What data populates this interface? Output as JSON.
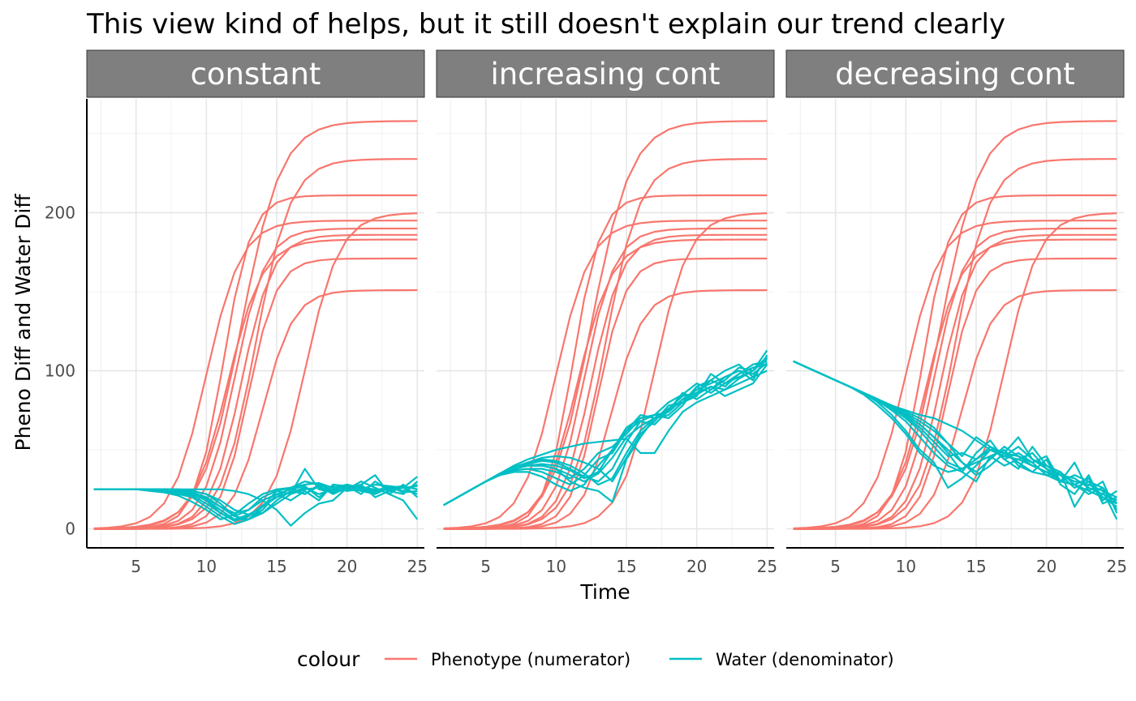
{
  "chart_data": {
    "type": "line",
    "title": "This view kind of helps, but it still doesn't explain our trend clearly",
    "xlabel": "Time",
    "ylabel": "Pheno Diff and Water Diff",
    "xlim": [
      1.5,
      25.5
    ],
    "ylim": [
      -12,
      272
    ],
    "x_ticks": [
      5,
      10,
      15,
      20,
      25
    ],
    "y_ticks": [
      0,
      100,
      200
    ],
    "grid": true,
    "legend_position": "bottom",
    "legend": {
      "title": "colour",
      "entries": [
        {
          "label": "Phenotype (numerator)",
          "color": "#F8766D"
        },
        {
          "label": "Water (denominator)",
          "color": "#00BFC4"
        }
      ]
    },
    "x": [
      2,
      3,
      4,
      5,
      6,
      7,
      8,
      9,
      10,
      11,
      12,
      13,
      14,
      15,
      16,
      17,
      18,
      19,
      20,
      21,
      22,
      23,
      24,
      25
    ],
    "phenotype_params": [
      {
        "K": 258,
        "m": 12.5,
        "s": 0.7
      },
      {
        "K": 234,
        "m": 13.5,
        "s": 0.8
      },
      {
        "K": 211,
        "m": 11.2,
        "s": 1.0
      },
      {
        "K": 200,
        "m": 17.0,
        "s": 0.8
      },
      {
        "K": 195,
        "m": 10.0,
        "s": 0.8
      },
      {
        "K": 190,
        "m": 12.0,
        "s": 0.9
      },
      {
        "K": 186,
        "m": 12.5,
        "s": 0.9
      },
      {
        "K": 183,
        "m": 11.5,
        "s": 0.8
      },
      {
        "K": 171,
        "m": 13.0,
        "s": 1.0
      },
      {
        "K": 151,
        "m": 14.0,
        "s": 0.9
      }
    ],
    "facets": [
      {
        "strip": "constant",
        "series": [
          {
            "name": "Phenotype (numerator)",
            "group": "phenotype"
          },
          {
            "name": "Water (denominator)",
            "group": "water",
            "values": [
              [
                25,
                25,
                25,
                25,
                25,
                25,
                24,
                23,
                18,
                10,
                6,
                9,
                14,
                20,
                23,
                26,
                22,
                25,
                27,
                24,
                22,
                26,
                27,
                25
              ],
              [
                25,
                25,
                25,
                25,
                25,
                24,
                22,
                20,
                14,
                8,
                3,
                6,
                12,
                22,
                25,
                27,
                20,
                27,
                24,
                28,
                20,
                24,
                22,
                30
              ],
              [
                25,
                25,
                25,
                25,
                25,
                25,
                25,
                24,
                22,
                16,
                8,
                12,
                20,
                24,
                22,
                38,
                25,
                23,
                25,
                30,
                26,
                22,
                28,
                20
              ],
              [
                25,
                25,
                25,
                25,
                24,
                23,
                21,
                17,
                12,
                6,
                9,
                16,
                22,
                25,
                26,
                22,
                27,
                22,
                26,
                24,
                23,
                26,
                24,
                28
              ],
              [
                25,
                25,
                25,
                25,
                25,
                25,
                24,
                22,
                18,
                12,
                6,
                6,
                14,
                24,
                26,
                28,
                29,
                26,
                28,
                25,
                24,
                27,
                26,
                22
              ],
              [
                25,
                25,
                25,
                25,
                25,
                25,
                24,
                23,
                20,
                14,
                10,
                12,
                18,
                22,
                18,
                24,
                18,
                28,
                27,
                22,
                30,
                24,
                26,
                33
              ],
              [
                25,
                25,
                25,
                25,
                25,
                24,
                23,
                21,
                16,
                10,
                5,
                8,
                15,
                20,
                26,
                30,
                28,
                24,
                28,
                26,
                25,
                25,
                26,
                27
              ],
              [
                25,
                25,
                25,
                25,
                25,
                25,
                24,
                22,
                19,
                14,
                8,
                6,
                10,
                18,
                24,
                22,
                28,
                26,
                24,
                25,
                28,
                27,
                23,
                24
              ],
              [
                25,
                25,
                25,
                25,
                25,
                25,
                25,
                24,
                22,
                18,
                12,
                9,
                10,
                16,
                22,
                25,
                26,
                24,
                26,
                27,
                24,
                25,
                27,
                25
              ],
              [
                25,
                25,
                25,
                25,
                25,
                25,
                25,
                25,
                25,
                25,
                24,
                22,
                18,
                12,
                2,
                10,
                16,
                18,
                26,
                28,
                34,
                22,
                18,
                6
              ]
            ]
          }
        ]
      },
      {
        "strip": "increasing cont",
        "series": [
          {
            "name": "Phenotype (numerator)",
            "group": "phenotype"
          },
          {
            "name": "Water (denominator)",
            "group": "water",
            "values": [
              [
                15,
                20,
                25,
                30,
                35,
                38,
                40,
                40,
                38,
                34,
                30,
                35,
                45,
                58,
                65,
                70,
                72,
                80,
                85,
                90,
                88,
                95,
                100,
                108
              ],
              [
                15,
                20,
                25,
                30,
                34,
                38,
                41,
                43,
                42,
                38,
                33,
                30,
                38,
                55,
                68,
                72,
                74,
                82,
                88,
                92,
                96,
                100,
                98,
                105
              ],
              [
                15,
                20,
                25,
                30,
                35,
                39,
                42,
                44,
                43,
                40,
                35,
                28,
                32,
                48,
                62,
                70,
                76,
                84,
                86,
                94,
                90,
                98,
                104,
                106
              ],
              [
                15,
                20,
                25,
                30,
                35,
                38,
                40,
                41,
                40,
                37,
                32,
                36,
                50,
                62,
                68,
                66,
                75,
                86,
                82,
                88,
                96,
                100,
                94,
                110
              ],
              [
                15,
                20,
                25,
                30,
                34,
                37,
                38,
                38,
                36,
                32,
                38,
                48,
                52,
                60,
                70,
                72,
                70,
                78,
                90,
                86,
                92,
                98,
                102,
                104
              ],
              [
                15,
                20,
                25,
                30,
                35,
                40,
                44,
                47,
                50,
                52,
                54,
                55,
                56,
                57,
                48,
                48,
                62,
                74,
                80,
                84,
                88,
                92,
                96,
                100
              ],
              [
                15,
                20,
                25,
                30,
                35,
                39,
                42,
                45,
                46,
                45,
                42,
                38,
                30,
                45,
                60,
                68,
                78,
                80,
                84,
                98,
                92,
                96,
                100,
                113
              ],
              [
                15,
                20,
                25,
                30,
                34,
                37,
                38,
                36,
                32,
                28,
                34,
                44,
                48,
                62,
                72,
                70,
                76,
                80,
                90,
                94,
                100,
                104,
                96,
                108
              ],
              [
                15,
                20,
                25,
                30,
                35,
                38,
                40,
                40,
                38,
                30,
                26,
                24,
                17,
                44,
                58,
                70,
                74,
                82,
                86,
                90,
                84,
                88,
                92,
                104
              ],
              [
                15,
                20,
                25,
                30,
                34,
                36,
                36,
                33,
                28,
                24,
                28,
                40,
                50,
                64,
                70,
                72,
                80,
                85,
                92,
                88,
                94,
                102,
                100,
                109
              ]
            ]
          }
        ]
      },
      {
        "strip": "decreasing cont",
        "series": [
          {
            "name": "Phenotype (numerator)",
            "group": "phenotype"
          },
          {
            "name": "Water (denominator)",
            "group": "water",
            "values": [
              [
                106,
                102,
                98,
                94,
                90,
                86,
                81,
                76,
                70,
                62,
                52,
                42,
                38,
                44,
                50,
                46,
                52,
                44,
                38,
                34,
                30,
                28,
                24,
                20
              ],
              [
                106,
                102,
                98,
                94,
                90,
                85,
                78,
                70,
                60,
                48,
                40,
                36,
                38,
                42,
                46,
                50,
                40,
                36,
                34,
                30,
                28,
                22,
                26,
                16
              ],
              [
                106,
                102,
                98,
                94,
                90,
                86,
                82,
                77,
                72,
                66,
                58,
                50,
                42,
                36,
                44,
                52,
                46,
                40,
                36,
                34,
                32,
                26,
                22,
                18
              ],
              [
                106,
                102,
                98,
                94,
                90,
                86,
                82,
                78,
                74,
                70,
                64,
                54,
                42,
                34,
                40,
                48,
                58,
                44,
                40,
                36,
                28,
                32,
                20,
                14
              ],
              [
                106,
                102,
                98,
                94,
                90,
                86,
                82,
                77,
                71,
                64,
                55,
                46,
                48,
                44,
                52,
                44,
                48,
                42,
                46,
                30,
                34,
                30,
                26,
                12
              ],
              [
                106,
                102,
                98,
                94,
                90,
                86,
                82,
                78,
                75,
                72,
                70,
                66,
                62,
                56,
                50,
                46,
                44,
                40,
                36,
                30,
                28,
                24,
                20,
                16
              ],
              [
                106,
                102,
                98,
                94,
                90,
                86,
                81,
                75,
                68,
                58,
                48,
                40,
                36,
                48,
                56,
                44,
                38,
                52,
                40,
                34,
                26,
                30,
                18,
                24
              ],
              [
                106,
                102,
                98,
                94,
                90,
                86,
                80,
                72,
                62,
                50,
                42,
                26,
                32,
                40,
                50,
                48,
                46,
                42,
                34,
                36,
                14,
                28,
                24,
                6
              ],
              [
                106,
                102,
                98,
                94,
                90,
                86,
                82,
                77,
                72,
                66,
                58,
                48,
                36,
                30,
                46,
                40,
                44,
                48,
                38,
                30,
                42,
                24,
                30,
                10
              ],
              [
                106,
                102,
                98,
                94,
                90,
                86,
                82,
                78,
                73,
                68,
                62,
                54,
                46,
                58,
                52,
                48,
                42,
                36,
                44,
                28,
                22,
                34,
                16,
                20
              ]
            ]
          }
        ]
      }
    ]
  }
}
